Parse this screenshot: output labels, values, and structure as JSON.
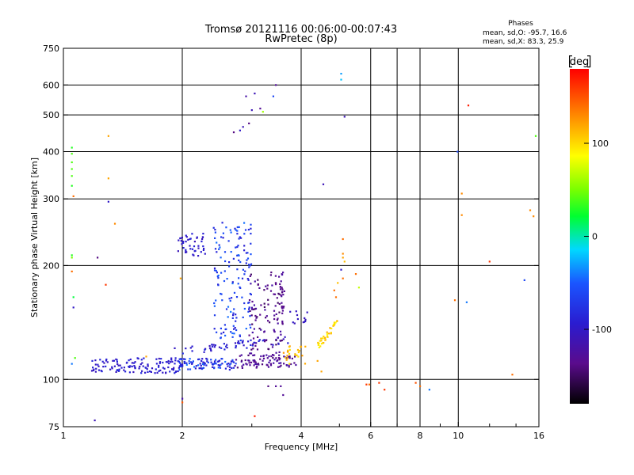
{
  "chart_data": {
    "type": "scatter",
    "title": "Tromsø 20121116 00:06:00-00:07:43",
    "subtitle": "RwPretec (8p)",
    "stats": {
      "heading": "Phases",
      "line_o": "mean, sd,O: -95.7, 16.6",
      "line_x": "mean, sd,X:  83.3, 25.9"
    },
    "xlabel": "Frequency [MHz]",
    "ylabel": "Stationary phase Virtual Height [km]",
    "x_scale": "log",
    "y_scale": "log",
    "xlim": [
      1,
      16
    ],
    "ylim": [
      75,
      750
    ],
    "grid": true,
    "x_ticks": [
      {
        "value": 1,
        "label": "1"
      },
      {
        "value": 2,
        "label": "2"
      },
      {
        "value": 4,
        "label": "4"
      },
      {
        "value": 6,
        "label": "6"
      },
      {
        "value": 8,
        "label": "8"
      },
      {
        "value": 10,
        "label": "10"
      },
      {
        "value": 16,
        "label": "16"
      }
    ],
    "x_minor_ticks": [
      3,
      5,
      7,
      9,
      12,
      14
    ],
    "x_grid": [
      2,
      4,
      6,
      7,
      8,
      10
    ],
    "y_ticks": [
      {
        "value": 75,
        "label": "75"
      },
      {
        "value": 100,
        "label": "100"
      },
      {
        "value": 200,
        "label": "200"
      },
      {
        "value": 300,
        "label": "300"
      },
      {
        "value": 400,
        "label": "400"
      },
      {
        "value": 500,
        "label": "500"
      },
      {
        "value": 600,
        "label": "600"
      },
      {
        "value": 750,
        "label": "750"
      }
    ],
    "y_grid": [
      100,
      200,
      300,
      400,
      500,
      600
    ],
    "colorbar": {
      "label": "deg",
      "range": [
        -180,
        180
      ],
      "ticks": [
        {
          "value": 100,
          "label": "100"
        },
        {
          "value": 0,
          "label": "0"
        },
        {
          "value": -100,
          "label": "-100"
        }
      ],
      "colormap": "rainbow"
    },
    "series": [
      {
        "values": [
          {
            "x": 1.05,
            "y": 110,
            "phase": -40
          },
          {
            "x": 1.07,
            "y": 114,
            "phase": 40
          },
          {
            "x": 1.06,
            "y": 155,
            "phase": -100
          },
          {
            "x": 1.06,
            "y": 165,
            "phase": 20
          },
          {
            "x": 1.05,
            "y": 193,
            "phase": 140
          },
          {
            "x": 1.05,
            "y": 210,
            "phase": 50
          },
          {
            "x": 1.05,
            "y": 213,
            "phase": 30
          },
          {
            "x": 1.06,
            "y": 305,
            "phase": 140
          },
          {
            "x": 1.05,
            "y": 325,
            "phase": 30
          },
          {
            "x": 1.05,
            "y": 345,
            "phase": 40
          },
          {
            "x": 1.05,
            "y": 360,
            "phase": 40
          },
          {
            "x": 1.05,
            "y": 375,
            "phase": 40
          },
          {
            "x": 1.05,
            "y": 395,
            "phase": 40
          },
          {
            "x": 1.05,
            "y": 410,
            "phase": 30
          },
          {
            "x": 1.2,
            "y": 78,
            "phase": -110
          },
          {
            "x": 1.22,
            "y": 210,
            "phase": -140
          },
          {
            "x": 1.28,
            "y": 178,
            "phase": 160
          },
          {
            "x": 1.3,
            "y": 295,
            "phase": -100
          },
          {
            "x": 1.3,
            "y": 340,
            "phase": 120
          },
          {
            "x": 1.3,
            "y": 440,
            "phase": 120
          },
          {
            "x": 1.35,
            "y": 258,
            "phase": 130
          },
          {
            "x": 1.62,
            "y": 115,
            "phase": 120
          },
          {
            "x": 1.98,
            "y": 185,
            "phase": 120
          },
          {
            "x": 2.0,
            "y": 89,
            "phase": -120
          },
          {
            "x": 2.0,
            "y": 87,
            "phase": 150
          },
          {
            "x": 2.7,
            "y": 450,
            "phase": -140
          },
          {
            "x": 2.8,
            "y": 455,
            "phase": -100
          },
          {
            "x": 2.85,
            "y": 465,
            "phase": -110
          },
          {
            "x": 2.95,
            "y": 475,
            "phase": -140
          },
          {
            "x": 2.9,
            "y": 560,
            "phase": -120
          },
          {
            "x": 3.0,
            "y": 515,
            "phase": -110
          },
          {
            "x": 3.05,
            "y": 570,
            "phase": -110
          },
          {
            "x": 3.15,
            "y": 520,
            "phase": -130
          },
          {
            "x": 3.2,
            "y": 510,
            "phase": 60
          },
          {
            "x": 3.4,
            "y": 560,
            "phase": -60
          },
          {
            "x": 3.45,
            "y": 600,
            "phase": -130
          },
          {
            "x": 3.05,
            "y": 80,
            "phase": 170
          },
          {
            "x": 3.3,
            "y": 96,
            "phase": -140
          },
          {
            "x": 3.45,
            "y": 96,
            "phase": -130
          },
          {
            "x": 3.55,
            "y": 96,
            "phase": -130
          },
          {
            "x": 3.6,
            "y": 91,
            "phase": -130
          },
          {
            "x": 4.55,
            "y": 328,
            "phase": -110
          },
          {
            "x": 4.5,
            "y": 105,
            "phase": 120
          },
          {
            "x": 4.4,
            "y": 112,
            "phase": 120
          },
          {
            "x": 4.85,
            "y": 172,
            "phase": 140
          },
          {
            "x": 4.9,
            "y": 165,
            "phase": 140
          },
          {
            "x": 4.95,
            "y": 180,
            "phase": 110
          },
          {
            "x": 5.05,
            "y": 195,
            "phase": -100
          },
          {
            "x": 5.1,
            "y": 235,
            "phase": 140
          },
          {
            "x": 5.1,
            "y": 215,
            "phase": 130
          },
          {
            "x": 5.1,
            "y": 210,
            "phase": 120
          },
          {
            "x": 5.15,
            "y": 205,
            "phase": 110
          },
          {
            "x": 5.05,
            "y": 643,
            "phase": -30
          },
          {
            "x": 5.05,
            "y": 620,
            "phase": -20
          },
          {
            "x": 5.15,
            "y": 495,
            "phase": -110
          },
          {
            "x": 5.1,
            "y": 185,
            "phase": 140
          },
          {
            "x": 5.5,
            "y": 190,
            "phase": 140
          },
          {
            "x": 5.6,
            "y": 175,
            "phase": 70
          },
          {
            "x": 5.85,
            "y": 97,
            "phase": 160
          },
          {
            "x": 5.95,
            "y": 97,
            "phase": 140
          },
          {
            "x": 6.3,
            "y": 98,
            "phase": 160
          },
          {
            "x": 6.5,
            "y": 94,
            "phase": 160
          },
          {
            "x": 7.8,
            "y": 98,
            "phase": 150
          },
          {
            "x": 8.0,
            "y": 96,
            "phase": 140
          },
          {
            "x": 8.45,
            "y": 94,
            "phase": -40
          },
          {
            "x": 9.8,
            "y": 162,
            "phase": 140
          },
          {
            "x": 9.95,
            "y": 400,
            "phase": -60
          },
          {
            "x": 10.2,
            "y": 310,
            "phase": 130
          },
          {
            "x": 10.2,
            "y": 272,
            "phase": 130
          },
          {
            "x": 10.5,
            "y": 160,
            "phase": -40
          },
          {
            "x": 10.6,
            "y": 530,
            "phase": 170
          },
          {
            "x": 12.0,
            "y": 205,
            "phase": 160
          },
          {
            "x": 13.7,
            "y": 103,
            "phase": 140
          },
          {
            "x": 14.7,
            "y": 183,
            "phase": -60
          },
          {
            "x": 15.2,
            "y": 280,
            "phase": 130
          },
          {
            "x": 15.5,
            "y": 270,
            "phase": 130
          },
          {
            "x": 15.7,
            "y": 440,
            "phase": 40
          }
        ]
      }
    ]
  }
}
